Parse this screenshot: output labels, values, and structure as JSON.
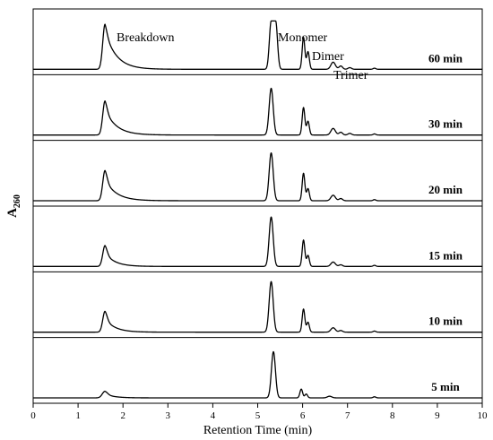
{
  "chart_data": {
    "type": "line",
    "title": "",
    "xlabel": "Retention Time (min)",
    "ylabel": "A",
    "ylabel_subscript": "260",
    "xlim": [
      0,
      10
    ],
    "x_ticks": [
      "0",
      "1",
      "2",
      "3",
      "4",
      "5",
      "6",
      "7",
      "8",
      "9",
      "10"
    ],
    "grid": false,
    "legend": "none",
    "peak_labels": [
      {
        "text": "Breakdown",
        "x": 1.62
      },
      {
        "text": "Monomer",
        "x": 5.3
      },
      {
        "text": "Dimer",
        "x": 6.02
      },
      {
        "text": "Trimer",
        "x": 6.68
      }
    ],
    "series": [
      {
        "name": "60 min",
        "peaks": [
          {
            "rt": 1.6,
            "height": 0.82,
            "width": 0.05,
            "tail": 0.25,
            "tailfrac": 0.85
          },
          {
            "rt": 5.3,
            "height": 0.88,
            "width": 0.04,
            "flat": 0.1
          },
          {
            "rt": 6.02,
            "height": 0.58,
            "width": 0.03
          },
          {
            "rt": 6.12,
            "height": 0.32,
            "width": 0.03
          },
          {
            "rt": 6.68,
            "height": 0.13,
            "width": 0.05
          },
          {
            "rt": 6.85,
            "height": 0.06,
            "width": 0.04
          },
          {
            "rt": 7.05,
            "height": 0.03,
            "width": 0.04
          },
          {
            "rt": 7.6,
            "height": 0.02,
            "width": 0.03
          }
        ]
      },
      {
        "name": "30 min",
        "peaks": [
          {
            "rt": 1.6,
            "height": 0.62,
            "width": 0.05,
            "tail": 0.25,
            "tailfrac": 0.75
          },
          {
            "rt": 5.3,
            "height": 0.85,
            "width": 0.045
          },
          {
            "rt": 6.02,
            "height": 0.5,
            "width": 0.03
          },
          {
            "rt": 6.12,
            "height": 0.25,
            "width": 0.03
          },
          {
            "rt": 6.68,
            "height": 0.12,
            "width": 0.05
          },
          {
            "rt": 6.85,
            "height": 0.05,
            "width": 0.04
          },
          {
            "rt": 7.05,
            "height": 0.03,
            "width": 0.04
          },
          {
            "rt": 7.6,
            "height": 0.02,
            "width": 0.03
          }
        ]
      },
      {
        "name": "20 min",
        "peaks": [
          {
            "rt": 1.6,
            "height": 0.55,
            "width": 0.05,
            "tail": 0.25,
            "tailfrac": 0.7
          },
          {
            "rt": 5.3,
            "height": 0.87,
            "width": 0.045
          },
          {
            "rt": 6.02,
            "height": 0.5,
            "width": 0.03
          },
          {
            "rt": 6.12,
            "height": 0.22,
            "width": 0.03
          },
          {
            "rt": 6.68,
            "height": 0.1,
            "width": 0.05
          },
          {
            "rt": 6.85,
            "height": 0.04,
            "width": 0.04
          },
          {
            "rt": 7.6,
            "height": 0.02,
            "width": 0.03
          }
        ]
      },
      {
        "name": "15 min",
        "peaks": [
          {
            "rt": 1.6,
            "height": 0.38,
            "width": 0.05,
            "tail": 0.22,
            "tailfrac": 0.65
          },
          {
            "rt": 5.3,
            "height": 0.9,
            "width": 0.045
          },
          {
            "rt": 6.02,
            "height": 0.48,
            "width": 0.03
          },
          {
            "rt": 6.12,
            "height": 0.2,
            "width": 0.03
          },
          {
            "rt": 6.68,
            "height": 0.08,
            "width": 0.05
          },
          {
            "rt": 6.85,
            "height": 0.03,
            "width": 0.04
          },
          {
            "rt": 7.6,
            "height": 0.02,
            "width": 0.03
          }
        ]
      },
      {
        "name": "10 min",
        "peaks": [
          {
            "rt": 1.6,
            "height": 0.38,
            "width": 0.05,
            "tail": 0.22,
            "tailfrac": 0.65
          },
          {
            "rt": 5.3,
            "height": 0.92,
            "width": 0.045
          },
          {
            "rt": 6.02,
            "height": 0.42,
            "width": 0.03
          },
          {
            "rt": 6.12,
            "height": 0.18,
            "width": 0.03
          },
          {
            "rt": 6.68,
            "height": 0.08,
            "width": 0.05
          },
          {
            "rt": 6.85,
            "height": 0.03,
            "width": 0.04
          },
          {
            "rt": 7.6,
            "height": 0.02,
            "width": 0.03
          }
        ]
      },
      {
        "name": "5 min",
        "peaks": [
          {
            "rt": 1.6,
            "height": 0.12,
            "width": 0.06,
            "tail": 0.2,
            "tailfrac": 0.6
          },
          {
            "rt": 5.35,
            "height": 0.84,
            "width": 0.045
          },
          {
            "rt": 5.97,
            "height": 0.16,
            "width": 0.03
          },
          {
            "rt": 6.08,
            "height": 0.07,
            "width": 0.03
          },
          {
            "rt": 6.6,
            "height": 0.03,
            "width": 0.05
          },
          {
            "rt": 7.6,
            "height": 0.02,
            "width": 0.03
          }
        ]
      }
    ]
  }
}
